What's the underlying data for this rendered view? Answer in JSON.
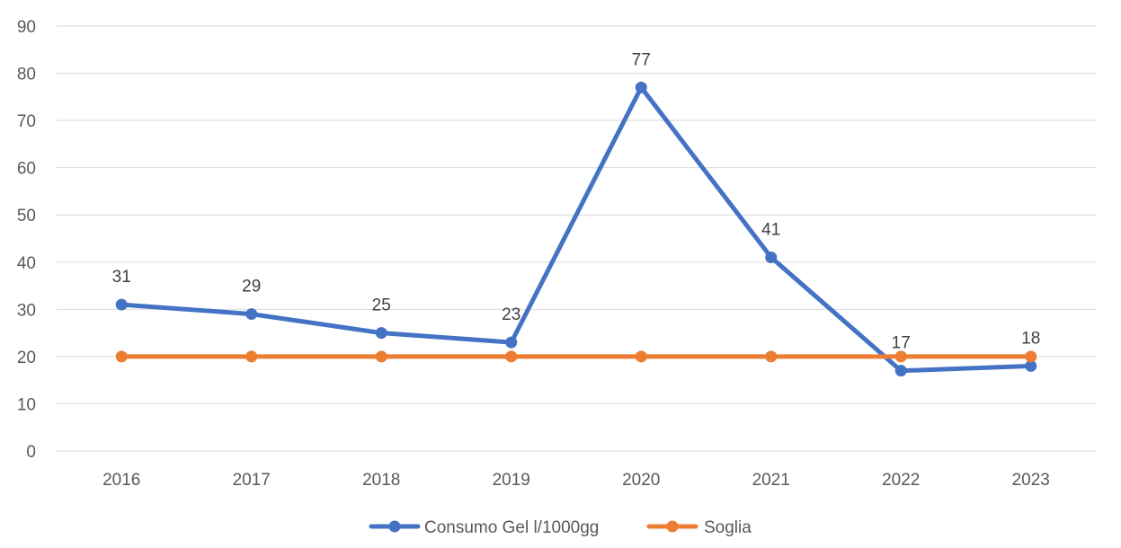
{
  "chart_data": {
    "type": "line",
    "title": "",
    "xlabel": "",
    "ylabel": "",
    "categories": [
      "2016",
      "2017",
      "2018",
      "2019",
      "2020",
      "2021",
      "2022",
      "2023"
    ],
    "ylim": [
      0,
      90
    ],
    "yticks": [
      0,
      10,
      20,
      30,
      40,
      50,
      60,
      70,
      80,
      90
    ],
    "grid": true,
    "legend": "bottom",
    "series": [
      {
        "name": "Consumo Gel l/1000gg",
        "color": "#4472C4",
        "values": [
          31,
          29,
          25,
          23,
          77,
          41,
          17,
          18
        ],
        "data_labels": [
          "31",
          "29",
          "25",
          "23",
          "77",
          "41",
          "17",
          "18"
        ]
      },
      {
        "name": "Soglia",
        "color": "#ED7D31",
        "values": [
          20,
          20,
          20,
          20,
          20,
          20,
          20,
          20
        ]
      }
    ]
  }
}
